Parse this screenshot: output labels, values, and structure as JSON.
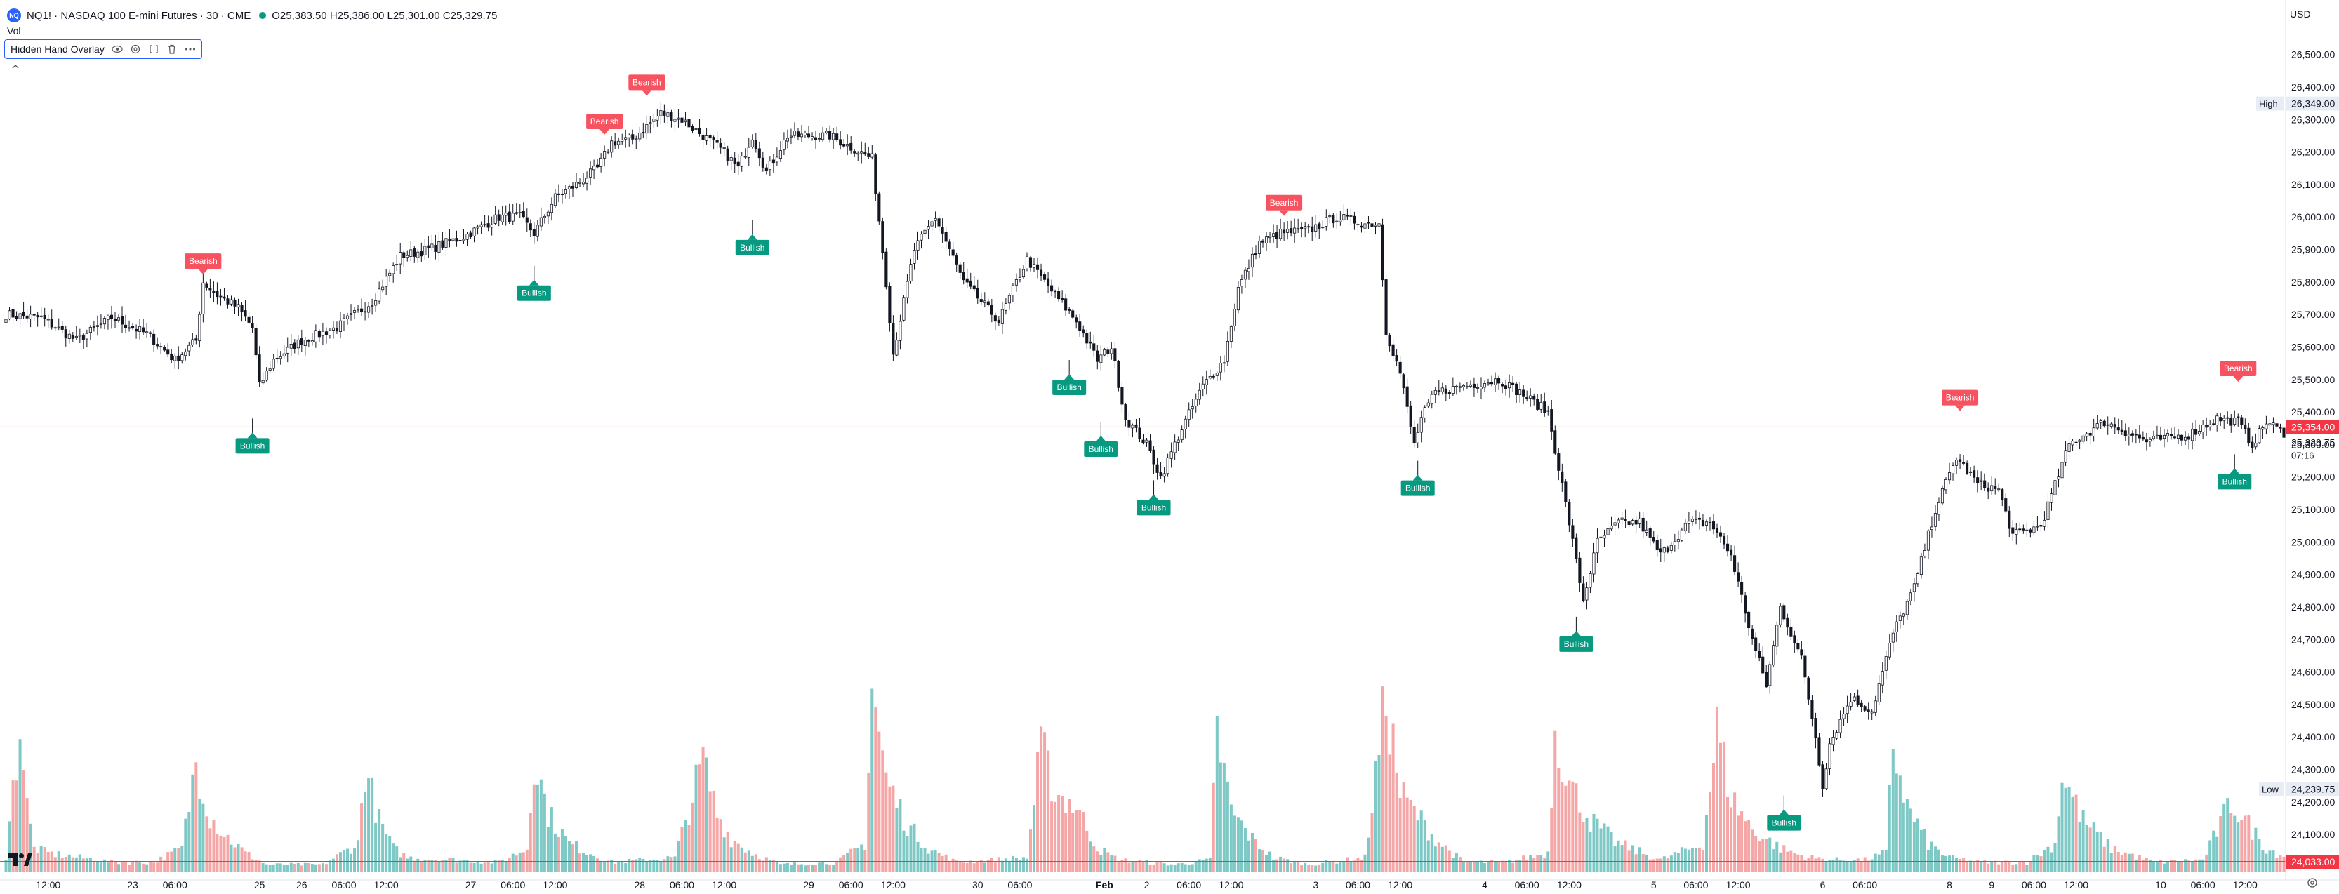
{
  "header": {
    "symbol_badge": "NQ",
    "title": "NQ1! · NASDAQ 100 E-mini Futures · 30 · CME",
    "ohlc": "O25,383.50 H25,386.00 L25,301.00 C25,329.75",
    "vol_label": "Vol",
    "indicator_name": "Hidden Hand Overlay",
    "currency": "USD",
    "market_status_color": "#089981"
  },
  "chart_data": {
    "type": "candlestick",
    "ylim": [
      23960,
      26590
    ],
    "price_ticks": [
      24100,
      24200,
      24300,
      24400,
      24500,
      24600,
      24700,
      24800,
      24900,
      25000,
      25100,
      25200,
      25300,
      25400,
      25500,
      25600,
      25700,
      25800,
      25900,
      26000,
      26100,
      26200,
      26300,
      26400,
      26500
    ],
    "price_tick_labels": [
      "24,100.00",
      "24,200.00",
      "24,300.00",
      "24,400.00",
      "24,500.00",
      "24,600.00",
      "24,700.00",
      "24,800.00",
      "24,900.00",
      "25,000.00",
      "25,100.00",
      "25,200.00",
      "25,300.00",
      "25,400.00",
      "25,500.00",
      "25,600.00",
      "25,700.00",
      "25,800.00",
      "25,900.00",
      "26,000.00",
      "26,100.00",
      "26,200.00",
      "26,300.00",
      "26,400.00",
      "26,500.00"
    ],
    "x_ticks": [
      {
        "i": 12,
        "label": "12:00"
      },
      {
        "i": 36,
        "label": "23"
      },
      {
        "i": 48,
        "label": "06:00"
      },
      {
        "i": 72,
        "label": "25"
      },
      {
        "i": 84,
        "label": "26"
      },
      {
        "i": 96,
        "label": "06:00"
      },
      {
        "i": 108,
        "label": "12:00"
      },
      {
        "i": 132,
        "label": "27"
      },
      {
        "i": 144,
        "label": "06:00"
      },
      {
        "i": 156,
        "label": "12:00"
      },
      {
        "i": 180,
        "label": "28"
      },
      {
        "i": 192,
        "label": "06:00"
      },
      {
        "i": 204,
        "label": "12:00"
      },
      {
        "i": 228,
        "label": "29"
      },
      {
        "i": 240,
        "label": "06:00"
      },
      {
        "i": 252,
        "label": "12:00"
      },
      {
        "i": 276,
        "label": "30"
      },
      {
        "i": 288,
        "label": "06:00"
      },
      {
        "i": 312,
        "label": "Feb",
        "bold": true
      },
      {
        "i": 324,
        "label": "2"
      },
      {
        "i": 336,
        "label": "06:00"
      },
      {
        "i": 348,
        "label": "12:00"
      },
      {
        "i": 372,
        "label": "3"
      },
      {
        "i": 384,
        "label": "06:00"
      },
      {
        "i": 396,
        "label": "12:00"
      },
      {
        "i": 420,
        "label": "4"
      },
      {
        "i": 432,
        "label": "06:00"
      },
      {
        "i": 444,
        "label": "12:00"
      },
      {
        "i": 468,
        "label": "5"
      },
      {
        "i": 480,
        "label": "06:00"
      },
      {
        "i": 492,
        "label": "12:00"
      },
      {
        "i": 516,
        "label": "6"
      },
      {
        "i": 528,
        "label": "06:00"
      },
      {
        "i": 552,
        "label": "8"
      },
      {
        "i": 564,
        "label": "9"
      },
      {
        "i": 576,
        "label": "06:00"
      },
      {
        "i": 588,
        "label": "12:00"
      },
      {
        "i": 612,
        "label": "10"
      },
      {
        "i": 624,
        "label": "06:00"
      },
      {
        "i": 636,
        "label": "12:00"
      }
    ],
    "bar_count": 648,
    "close_anchors": [
      [
        0,
        25700
      ],
      [
        10,
        25690
      ],
      [
        20,
        25620
      ],
      [
        30,
        25690
      ],
      [
        40,
        25640
      ],
      [
        48,
        25560
      ],
      [
        54,
        25620
      ],
      [
        56,
        25800
      ],
      [
        60,
        25760
      ],
      [
        66,
        25720
      ],
      [
        70,
        25660
      ],
      [
        72,
        25480
      ],
      [
        76,
        25560
      ],
      [
        84,
        25620
      ],
      [
        94,
        25660
      ],
      [
        104,
        25740
      ],
      [
        112,
        25880
      ],
      [
        120,
        25900
      ],
      [
        130,
        25940
      ],
      [
        140,
        26000
      ],
      [
        146,
        26000
      ],
      [
        150,
        25950
      ],
      [
        156,
        26060
      ],
      [
        162,
        26100
      ],
      [
        168,
        26150
      ],
      [
        172,
        26230
      ],
      [
        178,
        26240
      ],
      [
        186,
        26320
      ],
      [
        192,
        26300
      ],
      [
        204,
        26200
      ],
      [
        208,
        26150
      ],
      [
        212,
        26250
      ],
      [
        216,
        26140
      ],
      [
        222,
        26250
      ],
      [
        234,
        26250
      ],
      [
        246,
        26180
      ],
      [
        250,
        25800
      ],
      [
        252,
        25580
      ],
      [
        258,
        25900
      ],
      [
        264,
        26000
      ],
      [
        272,
        25800
      ],
      [
        282,
        25680
      ],
      [
        290,
        25870
      ],
      [
        298,
        25760
      ],
      [
        304,
        25680
      ],
      [
        310,
        25560
      ],
      [
        314,
        25600
      ],
      [
        318,
        25380
      ],
      [
        324,
        25300
      ],
      [
        328,
        25200
      ],
      [
        334,
        25350
      ],
      [
        340,
        25480
      ],
      [
        346,
        25560
      ],
      [
        350,
        25780
      ],
      [
        356,
        25920
      ],
      [
        362,
        25950
      ],
      [
        370,
        25960
      ],
      [
        378,
        26000
      ],
      [
        386,
        25980
      ],
      [
        390,
        25980
      ],
      [
        392,
        25650
      ],
      [
        396,
        25520
      ],
      [
        400,
        25300
      ],
      [
        402,
        25380
      ],
      [
        406,
        25460
      ],
      [
        414,
        25480
      ],
      [
        424,
        25500
      ],
      [
        430,
        25460
      ],
      [
        438,
        25400
      ],
      [
        444,
        25060
      ],
      [
        448,
        24820
      ],
      [
        452,
        25000
      ],
      [
        458,
        25060
      ],
      [
        464,
        25060
      ],
      [
        470,
        24960
      ],
      [
        478,
        25060
      ],
      [
        484,
        25060
      ],
      [
        490,
        24960
      ],
      [
        496,
        24700
      ],
      [
        500,
        24560
      ],
      [
        504,
        24800
      ],
      [
        510,
        24640
      ],
      [
        514,
        24400
      ],
      [
        516,
        24250
      ],
      [
        518,
        24380
      ],
      [
        524,
        24520
      ],
      [
        530,
        24480
      ],
      [
        536,
        24720
      ],
      [
        542,
        24860
      ],
      [
        548,
        25100
      ],
      [
        554,
        25260
      ],
      [
        560,
        25180
      ],
      [
        566,
        25160
      ],
      [
        570,
        25020
      ],
      [
        578,
        25050
      ],
      [
        586,
        25300
      ],
      [
        596,
        25370
      ],
      [
        608,
        25310
      ],
      [
        620,
        25330
      ],
      [
        628,
        25380
      ],
      [
        634,
        25370
      ],
      [
        638,
        25300
      ],
      [
        642,
        25370
      ],
      [
        648,
        25330
      ]
    ],
    "volume_max": 1.0,
    "volume_anchors": [
      [
        0,
        0.06
      ],
      [
        4,
        0.64
      ],
      [
        6,
        0.28
      ],
      [
        8,
        0.1
      ],
      [
        12,
        0.08
      ],
      [
        30,
        0.04
      ],
      [
        42,
        0.04
      ],
      [
        50,
        0.1
      ],
      [
        54,
        0.48
      ],
      [
        58,
        0.24
      ],
      [
        62,
        0.16
      ],
      [
        68,
        0.08
      ],
      [
        74,
        0.03
      ],
      [
        90,
        0.03
      ],
      [
        100,
        0.12
      ],
      [
        102,
        0.45
      ],
      [
        106,
        0.22
      ],
      [
        110,
        0.1
      ],
      [
        114,
        0.06
      ],
      [
        140,
        0.04
      ],
      [
        148,
        0.1
      ],
      [
        150,
        0.5
      ],
      [
        154,
        0.25
      ],
      [
        160,
        0.12
      ],
      [
        166,
        0.08
      ],
      [
        172,
        0.04
      ],
      [
        190,
        0.06
      ],
      [
        198,
        0.48
      ],
      [
        202,
        0.25
      ],
      [
        206,
        0.14
      ],
      [
        212,
        0.08
      ],
      [
        220,
        0.03
      ],
      [
        236,
        0.04
      ],
      [
        244,
        0.12
      ],
      [
        246,
        0.8
      ],
      [
        250,
        0.4
      ],
      [
        256,
        0.2
      ],
      [
        262,
        0.1
      ],
      [
        270,
        0.04
      ],
      [
        290,
        0.06
      ],
      [
        294,
        0.54
      ],
      [
        298,
        0.34
      ],
      [
        304,
        0.28
      ],
      [
        310,
        0.1
      ],
      [
        316,
        0.05
      ],
      [
        332,
        0.03
      ],
      [
        342,
        0.05
      ],
      [
        344,
        0.6
      ],
      [
        348,
        0.26
      ],
      [
        354,
        0.14
      ],
      [
        360,
        0.06
      ],
      [
        370,
        0.03
      ],
      [
        386,
        0.06
      ],
      [
        392,
        0.76
      ],
      [
        396,
        0.34
      ],
      [
        400,
        0.26
      ],
      [
        406,
        0.14
      ],
      [
        414,
        0.04
      ],
      [
        426,
        0.04
      ],
      [
        438,
        0.08
      ],
      [
        440,
        0.62
      ],
      [
        444,
        0.38
      ],
      [
        450,
        0.22
      ],
      [
        458,
        0.12
      ],
      [
        470,
        0.05
      ],
      [
        482,
        0.12
      ],
      [
        486,
        0.62
      ],
      [
        490,
        0.32
      ],
      [
        496,
        0.18
      ],
      [
        504,
        0.1
      ],
      [
        512,
        0.06
      ],
      [
        520,
        0.05
      ],
      [
        528,
        0.05
      ],
      [
        534,
        0.08
      ],
      [
        536,
        0.55
      ],
      [
        540,
        0.28
      ],
      [
        546,
        0.12
      ],
      [
        552,
        0.06
      ],
      [
        560,
        0.04
      ],
      [
        574,
        0.04
      ],
      [
        582,
        0.12
      ],
      [
        584,
        0.42
      ],
      [
        590,
        0.22
      ],
      [
        598,
        0.1
      ],
      [
        610,
        0.04
      ],
      [
        624,
        0.05
      ],
      [
        632,
        0.3
      ],
      [
        636,
        0.22
      ],
      [
        642,
        0.1
      ],
      [
        648,
        0.06
      ]
    ],
    "signals": [
      {
        "i": 56,
        "type": "Bearish",
        "price": 25780
      },
      {
        "i": 70,
        "type": "Bullish",
        "price": 25380
      },
      {
        "i": 150,
        "type": "Bullish",
        "price": 25850
      },
      {
        "i": 170,
        "type": "Bearish",
        "price": 26210
      },
      {
        "i": 182,
        "type": "Bearish",
        "price": 26330
      },
      {
        "i": 212,
        "type": "Bullish",
        "price": 25990
      },
      {
        "i": 302,
        "type": "Bullish",
        "price": 25560
      },
      {
        "i": 311,
        "type": "Bullish",
        "price": 25370
      },
      {
        "i": 326,
        "type": "Bullish",
        "price": 25190
      },
      {
        "i": 363,
        "type": "Bearish",
        "price": 25960
      },
      {
        "i": 401,
        "type": "Bullish",
        "price": 25250
      },
      {
        "i": 446,
        "type": "Bullish",
        "price": 24770
      },
      {
        "i": 505,
        "type": "Bullish",
        "price": 24220
      },
      {
        "i": 555,
        "type": "Bearish",
        "price": 25360
      },
      {
        "i": 633,
        "type": "Bullish",
        "price": 25270
      },
      {
        "i": 634,
        "type": "Bearish",
        "price": 25450
      }
    ],
    "current_price": {
      "value": 25354,
      "label": "25,354.00",
      "countdown": "07:16"
    },
    "last_price_label": "25,329.75",
    "high": {
      "label": "High",
      "value_label": "26,349.00",
      "value": 26349
    },
    "low": {
      "label": "Low",
      "value_label": "24,239.75",
      "value": 24239.75
    },
    "baseline": {
      "value": 24033,
      "label": "24,033.00"
    },
    "colors": {
      "up": "#089981",
      "down": "#f23645",
      "bull_label": "#089981",
      "bear_label": "#f7525f",
      "vol_up": "#7ec9c5",
      "vol_down": "#f5a7a7",
      "price_line": "#f23645"
    }
  },
  "icons": [
    "eye-icon",
    "settings-icon",
    "source-icon",
    "delete-icon",
    "more-icon",
    "collapse-chevron-icon",
    "tradingview-logo",
    "gear-icon"
  ]
}
